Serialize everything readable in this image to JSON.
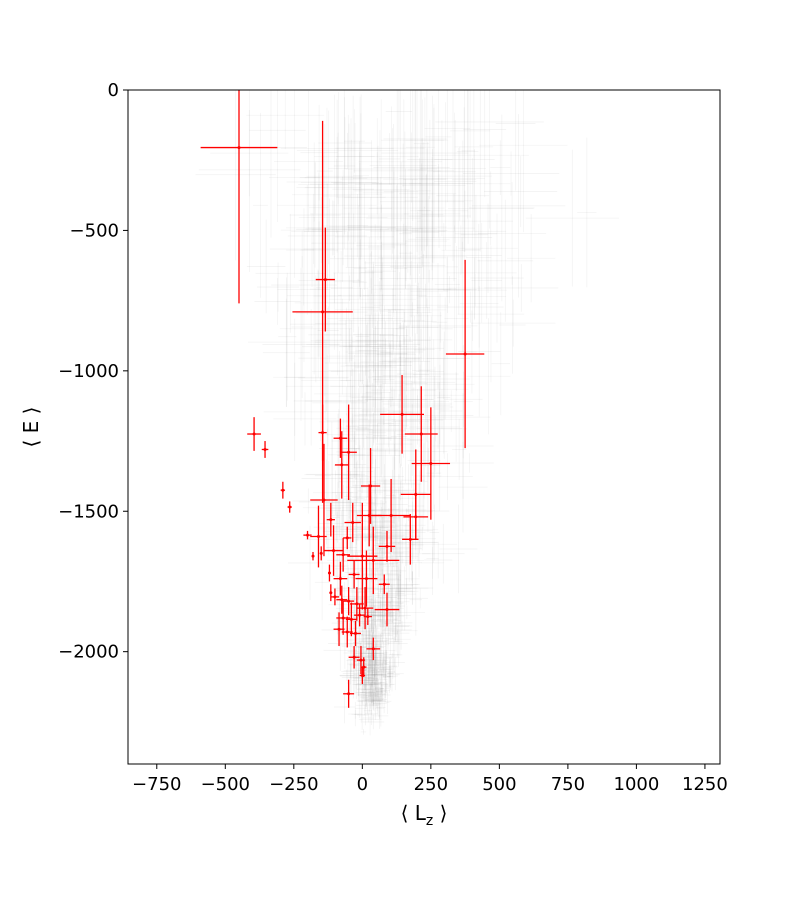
{
  "chart_data": {
    "type": "scatter",
    "title": "",
    "xlabel": "⟨ L_z ⟩",
    "ylabel": "⟨ E ⟩",
    "xlim": [
      -855,
      1305
    ],
    "ylim": [
      -2400,
      0
    ],
    "xticks": [
      -750,
      -500,
      -250,
      0,
      250,
      500,
      750,
      1000,
      1250
    ],
    "xtick_labels": [
      "−750",
      "−500",
      "−250",
      "0",
      "250",
      "500",
      "750",
      "1000",
      "1250"
    ],
    "yticks": [
      0,
      -500,
      -1000,
      -1500,
      -2000
    ],
    "ytick_labels": [
      "0",
      "−500",
      "−1000",
      "−1500",
      "−2000"
    ],
    "grid": false,
    "legend": "none",
    "colors": {
      "highlight": "#ff0000",
      "background": "#8c8c8c"
    },
    "series": [
      {
        "color": "#ff0000",
        "points": [
          {
            "x": -450,
            "y": -205,
            "xerr": 140,
            "yerr": 555
          },
          {
            "x": -135,
            "y": -675,
            "xerr": 35,
            "yerr": 185
          },
          {
            "x": -145,
            "y": -790,
            "xerr": 110,
            "yerr": 680
          },
          {
            "x": 375,
            "y": -940,
            "xerr": 70,
            "yerr": 335
          },
          {
            "x": -395,
            "y": -1225,
            "xerr": 25,
            "yerr": 60
          },
          {
            "x": -355,
            "y": -1280,
            "xerr": 12,
            "yerr": 30
          },
          {
            "x": -145,
            "y": -1220,
            "xerr": 15,
            "yerr": 100
          },
          {
            "x": 145,
            "y": -1155,
            "xerr": 80,
            "yerr": 140
          },
          {
            "x": 215,
            "y": -1225,
            "xerr": 60,
            "yerr": 170
          },
          {
            "x": 250,
            "y": -1330,
            "xerr": 70,
            "yerr": 200
          },
          {
            "x": 195,
            "y": -1440,
            "xerr": 55,
            "yerr": 160
          },
          {
            "x": -80,
            "y": -1240,
            "xerr": 25,
            "yerr": 70
          },
          {
            "x": -50,
            "y": -1290,
            "xerr": 30,
            "yerr": 170
          },
          {
            "x": -75,
            "y": -1335,
            "xerr": 25,
            "yerr": 120
          },
          {
            "x": -290,
            "y": -1425,
            "xerr": 8,
            "yerr": 30
          },
          {
            "x": -265,
            "y": -1485,
            "xerr": 8,
            "yerr": 20
          },
          {
            "x": -140,
            "y": -1460,
            "xerr": 50,
            "yerr": 200
          },
          {
            "x": -115,
            "y": -1530,
            "xerr": 15,
            "yerr": 60
          },
          {
            "x": 30,
            "y": -1410,
            "xerr": 35,
            "yerr": 135
          },
          {
            "x": 25,
            "y": -1515,
            "xerr": 45,
            "yerr": 110
          },
          {
            "x": 105,
            "y": -1515,
            "xerr": 70,
            "yerr": 130
          },
          {
            "x": 195,
            "y": -1520,
            "xerr": 45,
            "yerr": 80
          },
          {
            "x": -35,
            "y": -1540,
            "xerr": 30,
            "yerr": 70
          },
          {
            "x": -200,
            "y": -1585,
            "xerr": 15,
            "yerr": 15
          },
          {
            "x": -160,
            "y": -1590,
            "xerr": 30,
            "yerr": 110
          },
          {
            "x": 175,
            "y": -1600,
            "xerr": 30,
            "yerr": 90
          },
          {
            "x": -55,
            "y": -1595,
            "xerr": 15,
            "yerr": 40
          },
          {
            "x": -180,
            "y": -1660,
            "xerr": 5,
            "yerr": 15
          },
          {
            "x": -150,
            "y": -1650,
            "xerr": 5,
            "yerr": 25
          },
          {
            "x": -105,
            "y": -1640,
            "xerr": 35,
            "yerr": 90
          },
          {
            "x": -70,
            "y": -1655,
            "xerr": 25,
            "yerr": 60
          },
          {
            "x": 0,
            "y": -1660,
            "xerr": 55,
            "yerr": 190
          },
          {
            "x": 40,
            "y": -1675,
            "xerr": 95,
            "yerr": 120
          },
          {
            "x": 90,
            "y": -1625,
            "xerr": 30,
            "yerr": 55
          },
          {
            "x": -120,
            "y": -1720,
            "xerr": 5,
            "yerr": 30
          },
          {
            "x": -80,
            "y": -1740,
            "xerr": 25,
            "yerr": 60
          },
          {
            "x": -30,
            "y": -1725,
            "xerr": 20,
            "yerr": 50
          },
          {
            "x": 15,
            "y": -1740,
            "xerr": 40,
            "yerr": 100
          },
          {
            "x": 80,
            "y": -1760,
            "xerr": 20,
            "yerr": 35
          },
          {
            "x": -115,
            "y": -1790,
            "xerr": 5,
            "yerr": 30
          },
          {
            "x": -100,
            "y": -1805,
            "xerr": 15,
            "yerr": 30
          },
          {
            "x": -75,
            "y": -1815,
            "xerr": 20,
            "yerr": 50
          },
          {
            "x": -50,
            "y": -1820,
            "xerr": 20,
            "yerr": 50
          },
          {
            "x": -20,
            "y": -1830,
            "xerr": 25,
            "yerr": 60
          },
          {
            "x": 10,
            "y": -1845,
            "xerr": 30,
            "yerr": 75
          },
          {
            "x": 90,
            "y": -1850,
            "xerr": 45,
            "yerr": 60
          },
          {
            "x": -70,
            "y": -1880,
            "xerr": 25,
            "yerr": 60
          },
          {
            "x": -40,
            "y": -1885,
            "xerr": 20,
            "yerr": 60
          },
          {
            "x": -10,
            "y": -1870,
            "xerr": 20,
            "yerr": 40
          },
          {
            "x": 20,
            "y": -1875,
            "xerr": 15,
            "yerr": 30
          },
          {
            "x": -85,
            "y": -1920,
            "xerr": 20,
            "yerr": 60
          },
          {
            "x": -55,
            "y": -1930,
            "xerr": 20,
            "yerr": 55
          },
          {
            "x": -25,
            "y": -1935,
            "xerr": 20,
            "yerr": 45
          },
          {
            "x": 40,
            "y": -1990,
            "xerr": 25,
            "yerr": 40
          },
          {
            "x": -30,
            "y": -2020,
            "xerr": 20,
            "yerr": 40
          },
          {
            "x": -5,
            "y": -2030,
            "xerr": 15,
            "yerr": 50
          },
          {
            "x": 5,
            "y": -2055,
            "xerr": 10,
            "yerr": 35
          },
          {
            "x": 0,
            "y": -2085,
            "xerr": 10,
            "yerr": 30
          },
          {
            "x": -50,
            "y": -2150,
            "xerr": 20,
            "yerr": 50
          }
        ]
      }
    ]
  }
}
